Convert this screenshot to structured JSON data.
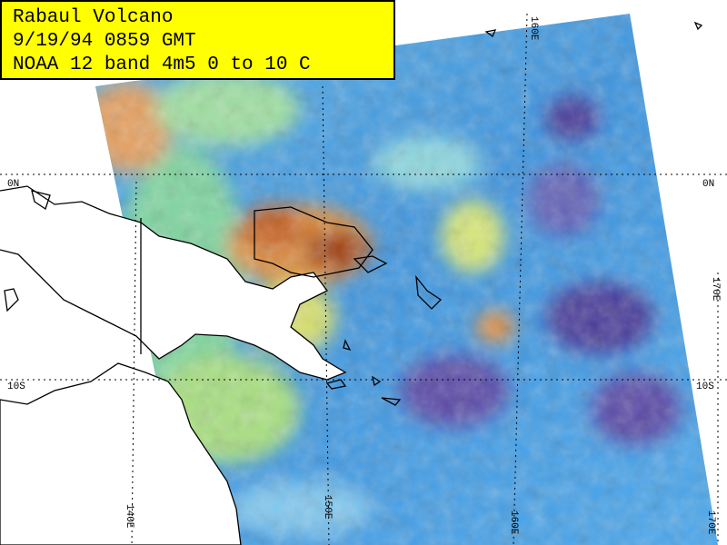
{
  "title_box": {
    "lines": [
      "Rabaul Volcano",
      "9/19/94 0859 GMT",
      "NOAA 12 band 4m5 0 to 10 C"
    ]
  },
  "graticule": {
    "labels": [
      "0N",
      "0N",
      "10S",
      "10S",
      "160E",
      "170E",
      "140E",
      "150E",
      "160E",
      "170E"
    ]
  }
}
